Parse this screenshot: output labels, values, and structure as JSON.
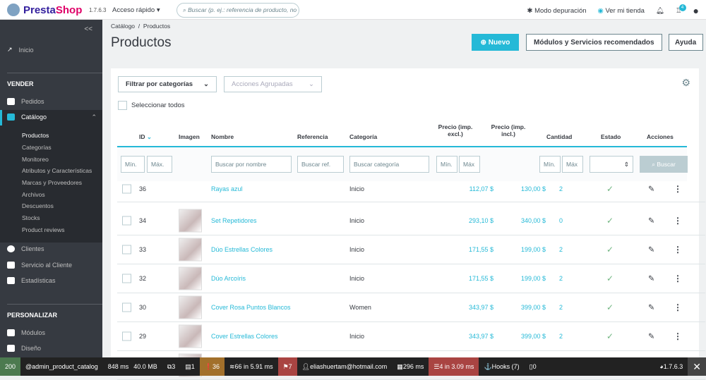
{
  "header": {
    "brand": {
      "a": "Presta",
      "b": "Shop"
    },
    "version": "1.7.6.3",
    "quick_access": "Acceso rápido ▾",
    "search_placeholder": "Buscar (p. ej.: referencia de producto, no",
    "debug_mode": "Modo depuración",
    "view_store": "Ver mi tienda",
    "notifications_badge": "4"
  },
  "sidebar": {
    "collapse": "<<",
    "home": "Inicio",
    "sell_section": "VENDER",
    "orders": "Pedidos",
    "catalog": "Catálogo",
    "catalog_sub": [
      "Productos",
      "Categorías",
      "Monitoreo",
      "Atributos y Características",
      "Marcas y Proveedores",
      "Archivos",
      "Descuentos",
      "Stocks",
      "Product reviews"
    ],
    "customers": "Clientes",
    "customer_service": "Servicio al Cliente",
    "stats": "Estadísticas",
    "customize_section": "PERSONALIZAR",
    "modules": "Módulos",
    "design": "Diseño"
  },
  "page": {
    "breadcrumb": "Catálogo  /  Productos",
    "title": "Productos",
    "new_button": "Nuevo",
    "modules_button": "Módulos y Servicios recomendados",
    "help_button": "Ayuda"
  },
  "toolbar": {
    "filter_categories": "Filtrar por categorías",
    "bulk_actions": "Acciones Agrupadas",
    "select_all": "Seleccionar todos"
  },
  "table": {
    "headers": {
      "id": "ID",
      "image": "Imagen",
      "name": "Nombre",
      "reference": "Referencia",
      "category": "Categoría",
      "price_excl": "Precio (imp. excl.)",
      "price_incl": "Precio (imp. incl.)",
      "quantity": "Cantidad",
      "status": "Estado",
      "actions": "Acciones"
    },
    "filters": {
      "min": "Mín.",
      "max": "Máx.",
      "max2": "Máx",
      "name": "Buscar por nombre",
      "ref": "Buscar ref.",
      "category": "Buscar categoría",
      "search": "Buscar"
    },
    "rows": [
      {
        "id": "36",
        "name": "Rayas azul",
        "category": "Inicio",
        "price_excl": "112,07 $",
        "price_incl": "130,00 $",
        "qty": "2",
        "has_image": false
      },
      {
        "id": "34",
        "name": "Set Repetidores",
        "category": "Inicio",
        "price_excl": "293,10 $",
        "price_incl": "340,00 $",
        "qty": "0",
        "has_image": true
      },
      {
        "id": "33",
        "name": "Dúo Estrellas Colores",
        "category": "Inicio",
        "price_excl": "171,55 $",
        "price_incl": "199,00 $",
        "qty": "2",
        "has_image": true
      },
      {
        "id": "32",
        "name": "Dúo Arcoíris",
        "category": "Inicio",
        "price_excl": "171,55 $",
        "price_incl": "199,00 $",
        "qty": "2",
        "has_image": true
      },
      {
        "id": "30",
        "name": "Cover Rosa Puntos Blancos",
        "category": "Women",
        "price_excl": "343,97 $",
        "price_incl": "399,00 $",
        "qty": "2",
        "has_image": true
      },
      {
        "id": "29",
        "name": "Cover Estrellas Colores",
        "category": "Inicio",
        "price_excl": "343,97 $",
        "price_incl": "399,00 $",
        "qty": "2",
        "has_image": true
      }
    ]
  },
  "debugbar": {
    "status": "200",
    "route": "@admin_product_catalog",
    "time": "848 ms",
    "memory": "40.0 MB",
    "forms": "3",
    "logs": "1",
    "errors": "36",
    "queries": "66 in 5.91 ms",
    "translations": "7",
    "user": "eliashuertam@hotmail.com",
    "rendering": "296 ms",
    "cache": "4 in 3.09 ms",
    "hooks": "Hooks (7)",
    "other": "0",
    "version": "1.7.6.3"
  },
  "colors": {
    "accent": "#25b9d7",
    "sidebar": "#363a41",
    "error_badge": "#a2702b",
    "danger": "#a94442"
  }
}
